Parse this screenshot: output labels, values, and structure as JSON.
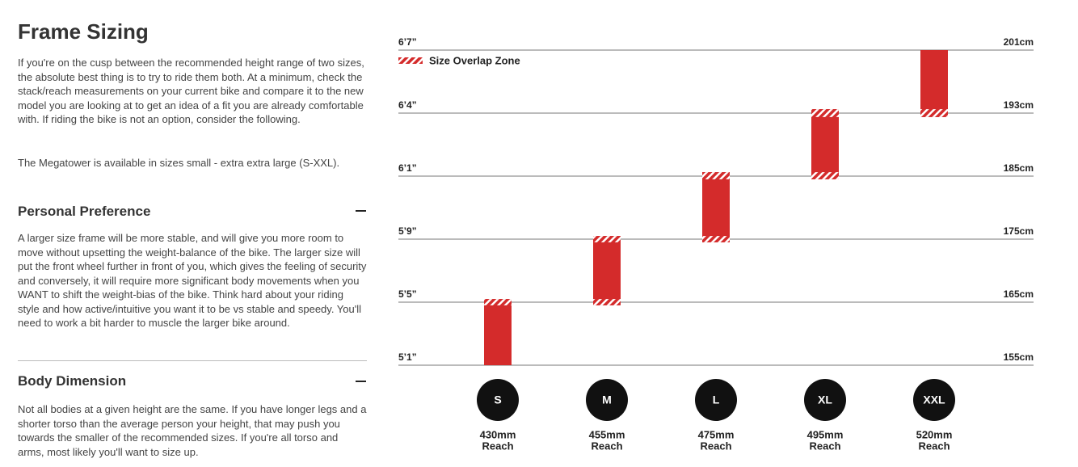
{
  "sidebar": {
    "title": "Frame Sizing",
    "intro": [
      "If you're on the cusp between the recommended height range of two sizes, the absolute best thing is to try to ride them both. At a minimum, check the stack/reach measurements on your current bike and compare it to the new model you are looking at to get an idea of a fit you are already comfortable with. If riding the bike is not an option, consider the following.",
      "The Megatower is available in sizes small - extra extra large (S-XXL)."
    ],
    "sections": [
      {
        "heading": "Personal Preference",
        "text": "A larger size frame will be more stable, and will give you more room to move without upsetting the weight-balance of the bike. The larger size will put the front wheel further in front of you, which gives the feeling of security and conversely, it will require more significant body movements when you WANT to shift the weight-bias of the bike. Think hard about your riding style and how active/intuitive you want it to be vs stable and speedy. You'll need to work a bit harder to muscle the larger bike around."
      },
      {
        "heading": "Body Dimension",
        "text": "Not all bodies at a given height are the same. If you have longer legs and a shorter torso than the average person your height, that may push you towards the smaller of the recommended sizes. If you're all torso and arms, most likely you'll want to size up."
      }
    ]
  },
  "chart_data": {
    "type": "range-bar",
    "categories": [
      "S",
      "M",
      "L",
      "XL",
      "XXL"
    ],
    "low": [
      155,
      164.5,
      174.5,
      184.5,
      192.5
    ],
    "high": [
      165.5,
      175.5,
      185.5,
      193.5,
      201
    ],
    "color": "#d42b2b",
    "overlap_legend": "Size Overlap Zone",
    "ylim": [
      155,
      201
    ],
    "yticks": [
      {
        "value": 155,
        "label": "155cm"
      },
      {
        "value": 165,
        "label": "165cm"
      },
      {
        "value": 175,
        "label": "175cm"
      },
      {
        "value": 185,
        "label": "185cm"
      },
      {
        "value": 193,
        "label": "193cm"
      },
      {
        "value": 201,
        "label": "201cm"
      }
    ],
    "y_left_labels": [
      "5’1”",
      "5’5”",
      "5’9”",
      "6’1”",
      "6’4”",
      "6’7”"
    ],
    "reach": {
      "name": "Reach",
      "values": [
        430,
        455,
        475,
        495,
        520
      ],
      "value_labels": [
        "430mm",
        "455mm",
        "475mm",
        "495mm",
        "520mm"
      ]
    }
  }
}
